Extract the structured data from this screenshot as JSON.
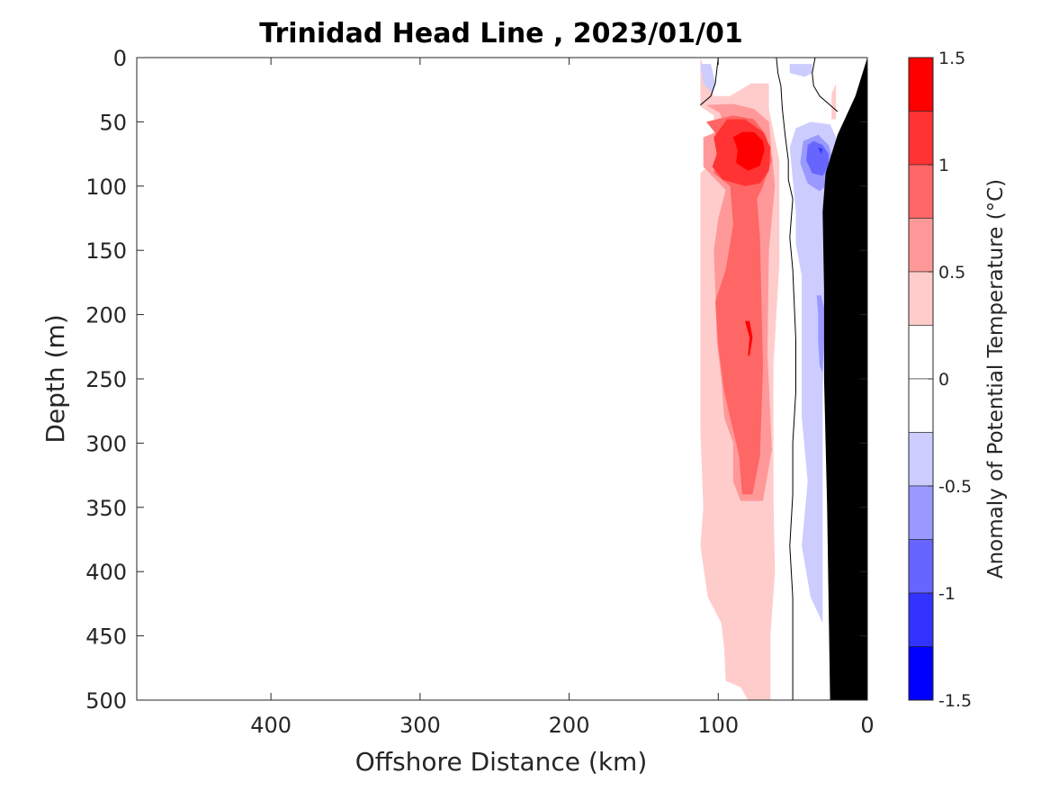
{
  "chart_data": {
    "type": "heatmap",
    "title": "Trinidad Head Line , 2023/01/01",
    "xlabel": "Offshore Distance (km)",
    "ylabel": "Depth (m)",
    "colorbar_label": "Anomaly of Potential Temperature (°C)",
    "xlim": [
      490,
      0
    ],
    "ylim": [
      0,
      500
    ],
    "x_reversed": true,
    "y_reversed": true,
    "xticks": [
      400,
      300,
      200,
      100,
      0
    ],
    "yticks": [
      0,
      50,
      100,
      150,
      200,
      250,
      300,
      350,
      400,
      450,
      500
    ],
    "colorbar": {
      "range": [
        -1.5,
        1.5
      ],
      "ticks": [
        1.5,
        1,
        0.5,
        0,
        -0.5,
        -1,
        -1.5
      ],
      "tick_labels": [
        "1.5",
        "1",
        "0.5",
        "0",
        "-0.5",
        "-1",
        "-1.5"
      ],
      "levels": [
        {
          "min": 1.25,
          "max": 1.5,
          "color": "#ff0000"
        },
        {
          "min": 1.0,
          "max": 1.25,
          "color": "#ff3333"
        },
        {
          "min": 0.75,
          "max": 1.0,
          "color": "#ff6666"
        },
        {
          "min": 0.5,
          "max": 0.75,
          "color": "#ff9999"
        },
        {
          "min": 0.25,
          "max": 0.5,
          "color": "#ffcccc"
        },
        {
          "min": 0.0,
          "max": 0.25,
          "color": "#ffffff"
        },
        {
          "min": -0.25,
          "max": 0.0,
          "color": "#ffffff"
        },
        {
          "min": -0.5,
          "max": -0.25,
          "color": "#ccccff"
        },
        {
          "min": -0.75,
          "max": -0.5,
          "color": "#9999ff"
        },
        {
          "min": -1.0,
          "max": -0.75,
          "color": "#6666ff"
        },
        {
          "min": -1.25,
          "max": -1.0,
          "color": "#3333ff"
        },
        {
          "min": -1.5,
          "max": -1.25,
          "color": "#0000ff"
        }
      ]
    },
    "regions": [
      {
        "name": "warm-025",
        "color": "#ffcccc",
        "points": [
          [
            112,
            0
          ],
          [
            112,
            38
          ],
          [
            103,
            45
          ],
          [
            103,
            80
          ],
          [
            112,
            90
          ],
          [
            112,
            290
          ],
          [
            110,
            350
          ],
          [
            112,
            380
          ],
          [
            107,
            420
          ],
          [
            98,
            440
          ],
          [
            96,
            460
          ],
          [
            95,
            485
          ],
          [
            85,
            490
          ],
          [
            80,
            500
          ],
          [
            65,
            500
          ],
          [
            65,
            450
          ],
          [
            62,
            400
          ],
          [
            63,
            340
          ],
          [
            63,
            240
          ],
          [
            59,
            160
          ],
          [
            59,
            80
          ],
          [
            66,
            40
          ],
          [
            66,
            20
          ],
          [
            78,
            20
          ],
          [
            92,
            30
          ],
          [
            103,
            30
          ]
        ]
      },
      {
        "name": "warm-050",
        "color": "#ff9999",
        "points": [
          [
            108,
            37
          ],
          [
            99,
            43
          ],
          [
            95,
            55
          ],
          [
            110,
            62
          ],
          [
            110,
            85
          ],
          [
            95,
            103
          ],
          [
            100,
            125
          ],
          [
            103,
            150
          ],
          [
            102,
            180
          ],
          [
            101,
            220
          ],
          [
            98,
            250
          ],
          [
            96,
            280
          ],
          [
            90,
            300
          ],
          [
            90,
            330
          ],
          [
            85,
            345
          ],
          [
            70,
            345
          ],
          [
            64,
            305
          ],
          [
            67,
            230
          ],
          [
            66,
            150
          ],
          [
            62,
            100
          ],
          [
            66,
            50
          ],
          [
            76,
            40
          ],
          [
            90,
            36
          ]
        ]
      },
      {
        "name": "warm-075",
        "color": "#ff6666",
        "points": [
          [
            108,
            50
          ],
          [
            101,
            60
          ],
          [
            100,
            70
          ],
          [
            103,
            90
          ],
          [
            92,
            100
          ],
          [
            90,
            130
          ],
          [
            95,
            165
          ],
          [
            102,
            190
          ],
          [
            100,
            225
          ],
          [
            96,
            260
          ],
          [
            86,
            310
          ],
          [
            84,
            340
          ],
          [
            77,
            340
          ],
          [
            72,
            310
          ],
          [
            70,
            240
          ],
          [
            71,
            190
          ],
          [
            72,
            140
          ],
          [
            74,
            110
          ],
          [
            70,
            100
          ],
          [
            64,
            80
          ],
          [
            68,
            60
          ],
          [
            76,
            48
          ],
          [
            90,
            45
          ]
        ]
      },
      {
        "name": "warm-100",
        "color": "#ff3333",
        "points": [
          [
            103,
            62
          ],
          [
            101,
            75
          ],
          [
            104,
            85
          ],
          [
            97,
            95
          ],
          [
            82,
            100
          ],
          [
            72,
            98
          ],
          [
            66,
            88
          ],
          [
            65,
            70
          ],
          [
            70,
            58
          ],
          [
            82,
            48
          ],
          [
            94,
            48
          ]
        ]
      },
      {
        "name": "warm-125",
        "color": "#ff0000",
        "points": [
          [
            90,
            62
          ],
          [
            87,
            72
          ],
          [
            88,
            82
          ],
          [
            80,
            88
          ],
          [
            72,
            84
          ],
          [
            69,
            72
          ],
          [
            70,
            65
          ],
          [
            76,
            58
          ],
          [
            84,
            58
          ]
        ]
      },
      {
        "name": "warm-125-deep",
        "color": "#ff0000",
        "points": [
          [
            82,
            205
          ],
          [
            79,
            218
          ],
          [
            80,
            232
          ],
          [
            79,
            232
          ],
          [
            77,
            218
          ],
          [
            79,
            205
          ]
        ]
      },
      {
        "name": "warm-shelf",
        "color": "#ffcccc",
        "points": [
          [
            24,
            28
          ],
          [
            24,
            48
          ],
          [
            21,
            48
          ],
          [
            21,
            20
          ]
        ]
      },
      {
        "name": "cool-025-top",
        "color": "#ccccff",
        "points": [
          [
            112,
            5
          ],
          [
            110,
            20
          ],
          [
            104,
            28
          ],
          [
            102,
            20
          ],
          [
            105,
            5
          ]
        ]
      },
      {
        "name": "cool-025-top2",
        "color": "#ccccff",
        "points": [
          [
            52,
            5
          ],
          [
            52,
            12
          ],
          [
            42,
            15
          ],
          [
            37,
            12
          ],
          [
            37,
            5
          ]
        ]
      },
      {
        "name": "cool-025-main",
        "color": "#ccccff",
        "points": [
          [
            48,
            55
          ],
          [
            52,
            70
          ],
          [
            50,
            95
          ],
          [
            48,
            120
          ],
          [
            48,
            145
          ],
          [
            44,
            170
          ],
          [
            44,
            200
          ],
          [
            44,
            240
          ],
          [
            44,
            280
          ],
          [
            40,
            330
          ],
          [
            44,
            380
          ],
          [
            38,
            420
          ],
          [
            30,
            440
          ],
          [
            30,
            395
          ],
          [
            30,
            330
          ],
          [
            30,
            260
          ],
          [
            28,
            200
          ],
          [
            26,
            170
          ],
          [
            22,
            150
          ],
          [
            22,
            120
          ],
          [
            20,
            80
          ],
          [
            21,
            62
          ],
          [
            25,
            52
          ],
          [
            38,
            50
          ]
        ]
      },
      {
        "name": "cool-050-a",
        "color": "#9999ff",
        "points": [
          [
            43,
            65
          ],
          [
            45,
            82
          ],
          [
            40,
            98
          ],
          [
            32,
            104
          ],
          [
            25,
            97
          ],
          [
            23,
            80
          ],
          [
            26,
            68
          ],
          [
            33,
            60
          ]
        ]
      },
      {
        "name": "cool-050-b",
        "color": "#9999ff",
        "points": [
          [
            34,
            185
          ],
          [
            33,
            200
          ],
          [
            33,
            220
          ],
          [
            32,
            240
          ],
          [
            30,
            245
          ],
          [
            29,
            220
          ],
          [
            29,
            195
          ],
          [
            31,
            185
          ]
        ]
      },
      {
        "name": "cool-075",
        "color": "#6666ff",
        "points": [
          [
            40,
            68
          ],
          [
            41,
            80
          ],
          [
            37,
            90
          ],
          [
            30,
            92
          ],
          [
            26,
            85
          ],
          [
            26,
            75
          ],
          [
            30,
            68
          ],
          [
            36,
            65
          ]
        ]
      },
      {
        "name": "cool-100",
        "color": "#3333ff",
        "points": [
          [
            33,
            70
          ],
          [
            31,
            75
          ],
          [
            30,
            71
          ]
        ]
      }
    ],
    "zero_contours": [
      {
        "name": "zero-contour-left",
        "points": [
          [
            112,
            37
          ],
          [
            105,
            30
          ],
          [
            102,
            20
          ],
          [
            100,
            0
          ]
        ]
      },
      {
        "name": "zero-contour-mid",
        "points": [
          [
            61,
            0
          ],
          [
            60,
            12
          ],
          [
            58,
            22
          ],
          [
            57,
            40
          ],
          [
            55,
            62
          ],
          [
            53,
            80
          ],
          [
            53,
            95
          ],
          [
            50,
            110
          ],
          [
            52,
            140
          ],
          [
            50,
            165
          ],
          [
            48,
            220
          ],
          [
            48,
            260
          ],
          [
            50,
            300
          ],
          [
            50,
            340
          ],
          [
            52,
            380
          ],
          [
            50,
            420
          ],
          [
            50,
            460
          ],
          [
            50,
            500
          ]
        ]
      },
      {
        "name": "zero-contour-right",
        "points": [
          [
            35,
            0
          ],
          [
            37,
            12
          ],
          [
            36,
            22
          ],
          [
            32,
            30
          ],
          [
            20,
            42
          ]
        ]
      }
    ],
    "land_mask": {
      "color": "#000000",
      "points": [
        [
          0,
          0
        ],
        [
          0,
          500
        ],
        [
          25,
          500
        ],
        [
          27,
          350
        ],
        [
          29,
          250
        ],
        [
          29,
          180
        ],
        [
          30,
          120
        ],
        [
          28,
          90
        ],
        [
          20,
          60
        ],
        [
          8,
          30
        ]
      ]
    }
  }
}
